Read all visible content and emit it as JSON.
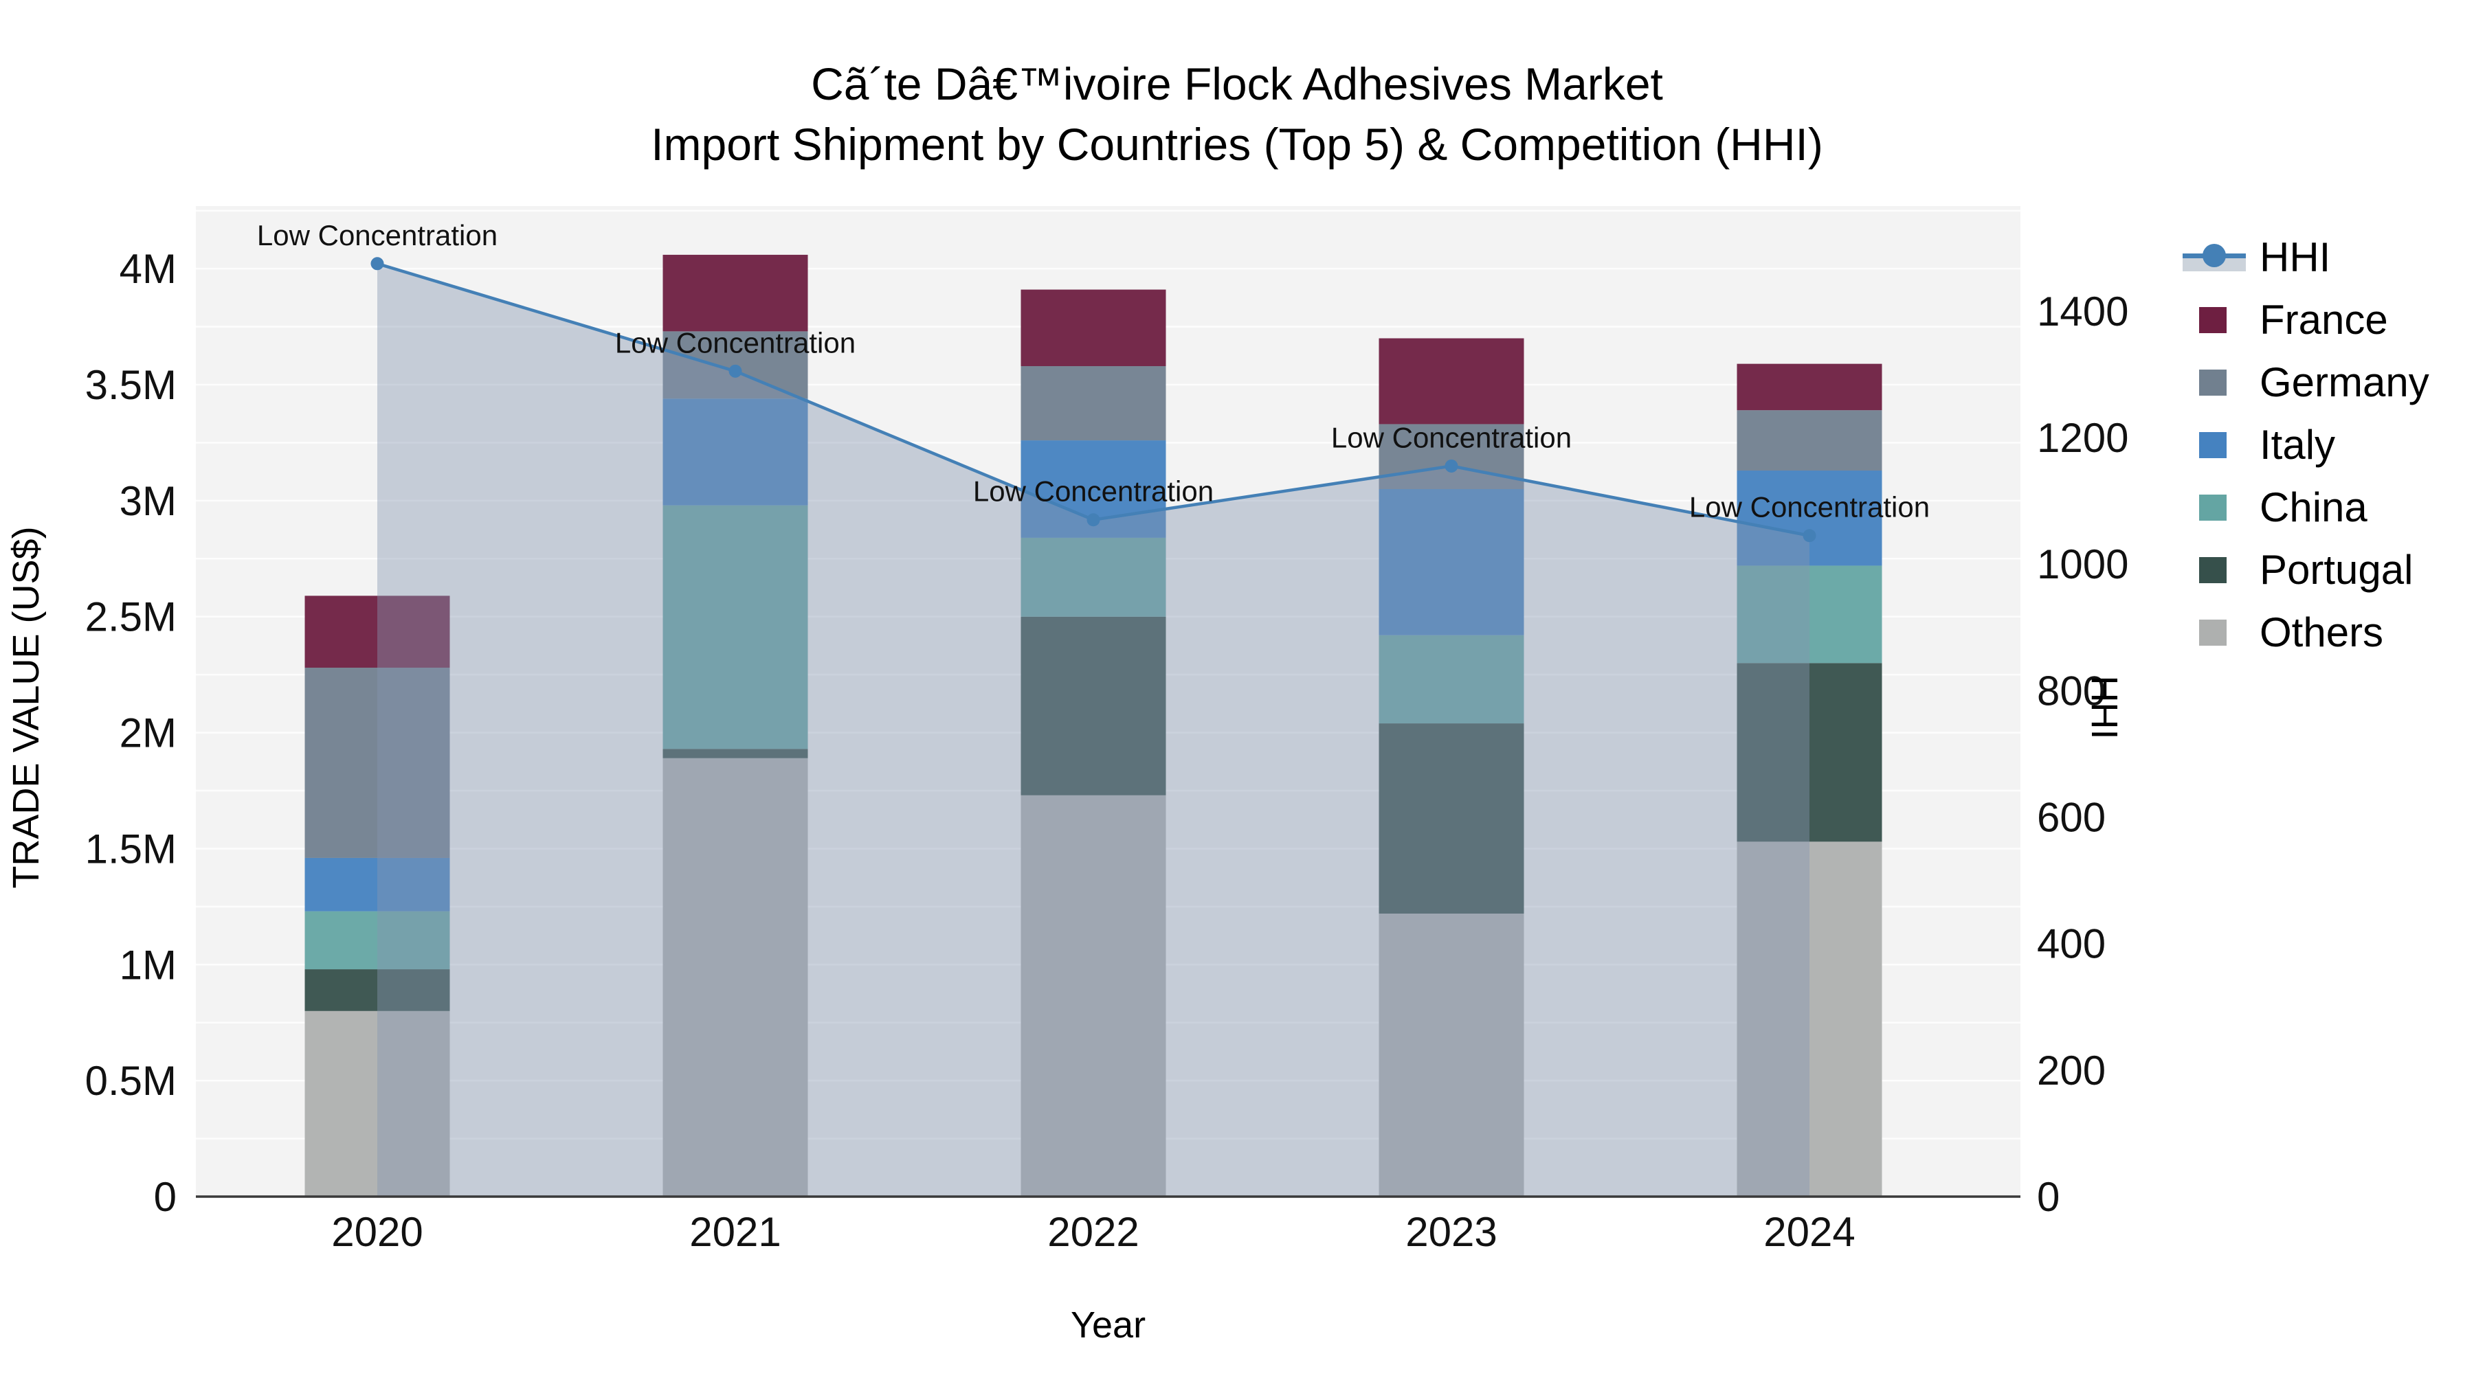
{
  "title": {
    "line1": "Cã´te Dâ€™ivoire Flock Adhesives Market",
    "line2": "Import Shipment by Countries (Top 5) & Competition (HHI)"
  },
  "axes": {
    "left": {
      "label": "TRADE VALUE (US$)",
      "ticks": [
        {
          "label": "0",
          "value": 0
        },
        {
          "label": "0.5M",
          "value": 0.5
        },
        {
          "label": "1M",
          "value": 1
        },
        {
          "label": "1.5M",
          "value": 1.5
        },
        {
          "label": "2M",
          "value": 2
        },
        {
          "label": "2.5M",
          "value": 2.5
        },
        {
          "label": "3M",
          "value": 3
        },
        {
          "label": "3.5M",
          "value": 3.5
        },
        {
          "label": "4M",
          "value": 4
        }
      ]
    },
    "right": {
      "label": "HHI",
      "ticks": [
        {
          "label": "0",
          "value": 0
        },
        {
          "label": "200",
          "value": 200
        },
        {
          "label": "400",
          "value": 400
        },
        {
          "label": "600",
          "value": 600
        },
        {
          "label": "800",
          "value": 800
        },
        {
          "label": "1000",
          "value": 1000
        },
        {
          "label": "1200",
          "value": 1200
        },
        {
          "label": "1400",
          "value": 1400
        }
      ]
    },
    "x": {
      "label": "Year"
    }
  },
  "legend": [
    {
      "label": "HHI",
      "color": "#4480b6",
      "type": "line"
    },
    {
      "label": "France",
      "color": "#6e1f41",
      "type": "box"
    },
    {
      "label": "Germany",
      "color": "#71808f",
      "type": "box"
    },
    {
      "label": "Italy",
      "color": "#4582c0",
      "type": "box"
    },
    {
      "label": "China",
      "color": "#64a5a3",
      "type": "box"
    },
    {
      "label": "Portugal",
      "color": "#36504b",
      "type": "box"
    },
    {
      "label": "Others",
      "color": "#aeb0af",
      "type": "box"
    }
  ],
  "chart_data": {
    "type": "bar",
    "subtype": "stacked-bars-with-line",
    "categories": [
      "2020",
      "2021",
      "2022",
      "2023",
      "2024"
    ],
    "series": [
      {
        "name": "Others",
        "color": "#aeb0af",
        "values_musd": [
          0.8,
          1.89,
          1.73,
          1.22,
          1.53
        ]
      },
      {
        "name": "Portugal",
        "color": "#36504b",
        "values_musd": [
          0.18,
          0.04,
          0.77,
          0.82,
          0.77
        ]
      },
      {
        "name": "China",
        "color": "#64a5a3",
        "values_musd": [
          0.25,
          1.05,
          0.34,
          0.38,
          0.42
        ]
      },
      {
        "name": "Italy",
        "color": "#4582c0",
        "values_musd": [
          0.23,
          0.46,
          0.42,
          0.63,
          0.41
        ]
      },
      {
        "name": "Germany",
        "color": "#71808f",
        "values_musd": [
          0.82,
          0.29,
          0.32,
          0.28,
          0.26
        ]
      },
      {
        "name": "France",
        "color": "#6e1f41",
        "values_musd": [
          0.31,
          0.33,
          0.33,
          0.37,
          0.2
        ]
      }
    ],
    "bar_totals_musd": [
      2.59,
      4.06,
      3.91,
      3.7,
      3.59
    ],
    "line": {
      "name": "HHI",
      "color": "#4480b6",
      "area_fill": "rgba(134,150,176,0.42)",
      "values": [
        1475,
        1305,
        1070,
        1155,
        1045
      ],
      "annotation": "Low Concentration"
    },
    "title": "Cã´te Dâ€™ivoire Flock Adhesives Market — Import Shipment by Countries (Top 5) & Competition (HHI)",
    "xlabel": "Year",
    "ylabel_left": "TRADE VALUE (US$)",
    "ylabel_right": "HHI",
    "ylim_left_musd": [
      0,
      4.27
    ],
    "ylim_right": [
      0,
      1566
    ],
    "grid": true,
    "grid_step_musd": 0.25,
    "legend_position": "right"
  }
}
